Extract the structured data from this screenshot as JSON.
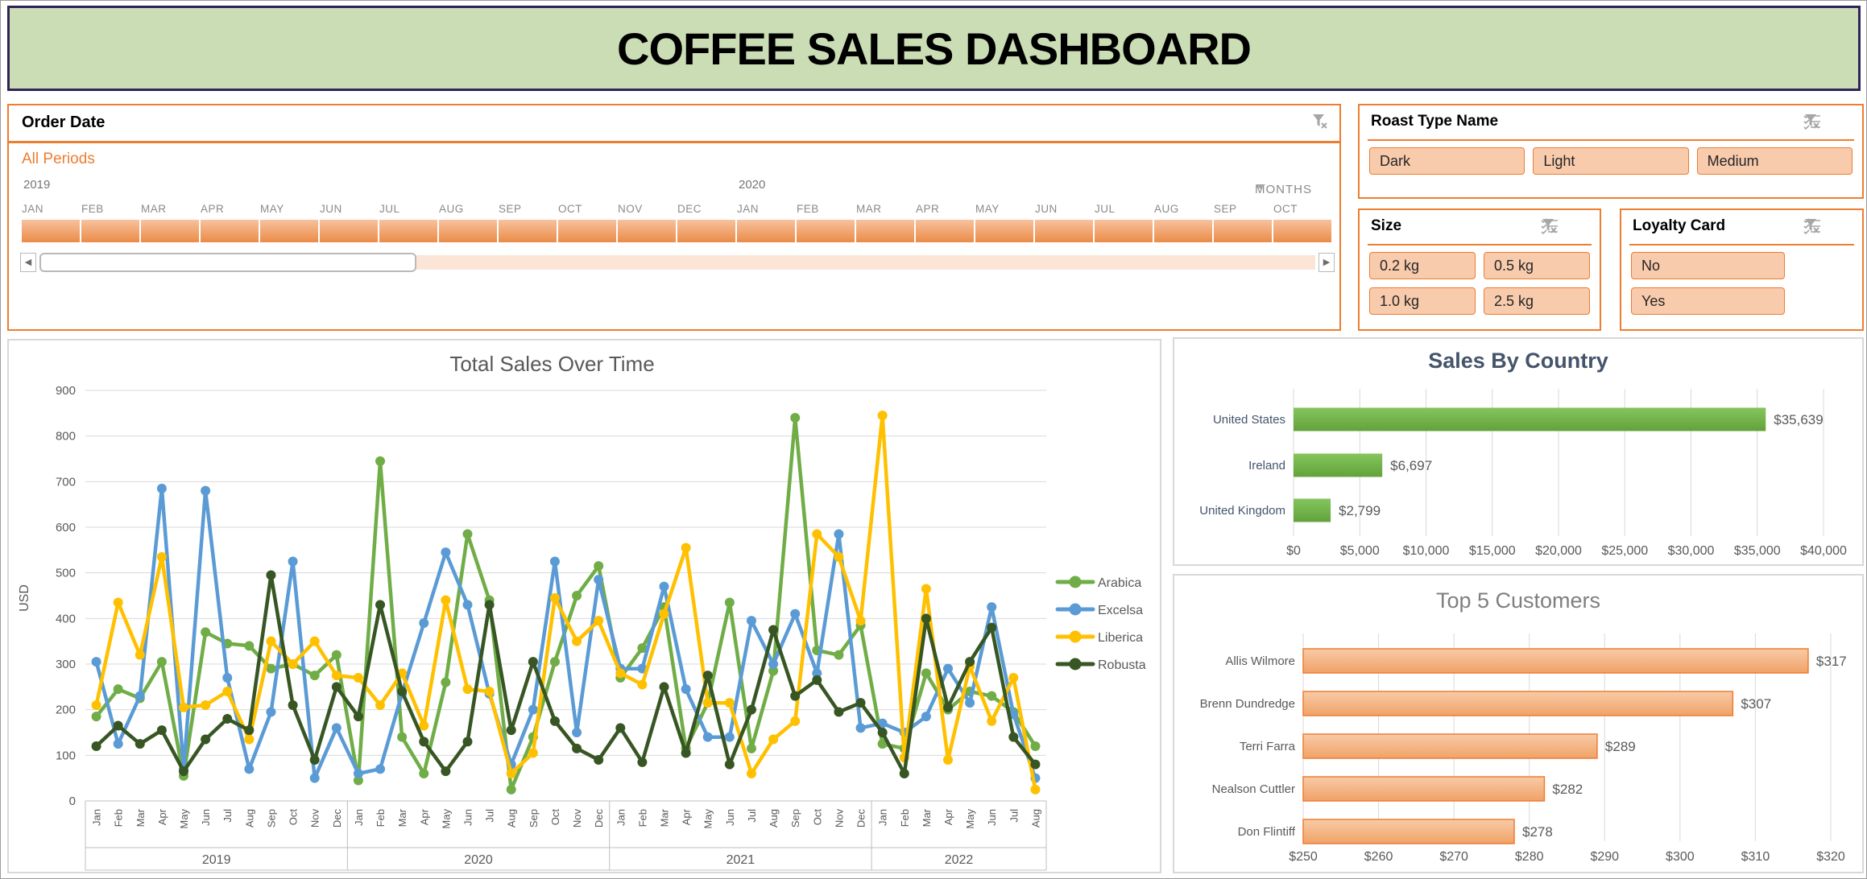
{
  "banner": {
    "title": "COFFEE SALES DASHBOARD"
  },
  "colors": {
    "accent_orange": "#ED7D31",
    "slicer_button_fill": "#F8CBAD",
    "banner_green": "#cbddb5",
    "banner_border": "#2f2457",
    "grid_gray": "#D9D9D9",
    "axis_text_gray": "#595959",
    "country_title_blue": "#44546A",
    "customer_title_gray": "#7f7f7f"
  },
  "timeline": {
    "title": "Order Date",
    "selection_label": "All Periods",
    "level_label": "MONTHS",
    "years": [
      {
        "label": "2019",
        "months": [
          "JAN",
          "FEB",
          "MAR",
          "APR",
          "MAY",
          "JUN",
          "JUL",
          "AUG",
          "SEP",
          "OCT",
          "NOV",
          "DEC"
        ]
      },
      {
        "label": "2020",
        "months": [
          "JAN",
          "FEB",
          "MAR",
          "APR",
          "MAY",
          "JUN",
          "JUL",
          "AUG",
          "SEP",
          "OCT"
        ]
      }
    ]
  },
  "slicers": [
    {
      "title": "Roast Type Name",
      "items": [
        "Dark",
        "Light",
        "Medium"
      ],
      "columns": 3
    },
    {
      "title": "Size",
      "items": [
        "0.2 kg",
        "0.5 kg",
        "1.0 kg",
        "2.5 kg"
      ],
      "columns": 2
    },
    {
      "title": "Loyalty Card",
      "items": [
        "No",
        "Yes"
      ],
      "columns": 1
    }
  ],
  "chart_data": [
    {
      "id": "total_sales",
      "type": "line",
      "title": "Total Sales Over Time",
      "xlabel": "",
      "ylabel": "USD",
      "ylim": [
        0,
        900
      ],
      "ytick": 100,
      "grid": true,
      "legend_position": "right",
      "month_names": [
        "Jan",
        "Feb",
        "Mar",
        "Apr",
        "May",
        "Jun",
        "Jul",
        "Aug",
        "Sep",
        "Oct",
        "Nov",
        "Dec"
      ],
      "year_groups": [
        {
          "label": "2019",
          "count": 12
        },
        {
          "label": "2020",
          "count": 12
        },
        {
          "label": "2021",
          "count": 12
        },
        {
          "label": "2022",
          "count": 8
        }
      ],
      "series": [
        {
          "name": "Arabica",
          "color": "#70AD47",
          "values": [
            185,
            245,
            225,
            305,
            55,
            370,
            345,
            340,
            290,
            300,
            275,
            320,
            45,
            745,
            140,
            60,
            260,
            585,
            440,
            25,
            140,
            305,
            450,
            515,
            270,
            335,
            425,
            115,
            215,
            435,
            115,
            285,
            840,
            330,
            320,
            385,
            125,
            115,
            280,
            200,
            240,
            230,
            195,
            120
          ]
        },
        {
          "name": "Excelsa",
          "color": "#5B9BD5",
          "values": [
            305,
            125,
            230,
            685,
            70,
            680,
            270,
            70,
            195,
            525,
            50,
            160,
            60,
            70,
            235,
            390,
            545,
            430,
            235,
            80,
            200,
            525,
            150,
            485,
            290,
            290,
            470,
            245,
            140,
            140,
            395,
            300,
            410,
            280,
            585,
            160,
            170,
            150,
            185,
            290,
            215,
            425,
            190,
            50
          ]
        },
        {
          "name": "Liberica",
          "color": "#FFC000",
          "values": [
            210,
            435,
            320,
            535,
            205,
            210,
            240,
            135,
            350,
            300,
            350,
            275,
            270,
            210,
            280,
            165,
            440,
            245,
            240,
            60,
            105,
            445,
            350,
            395,
            280,
            255,
            410,
            555,
            215,
            215,
            60,
            135,
            175,
            585,
            535,
            395,
            845,
            95,
            465,
            90,
            295,
            175,
            270,
            25
          ]
        },
        {
          "name": "Robusta",
          "color": "#375623",
          "values": [
            120,
            165,
            125,
            155,
            65,
            135,
            180,
            155,
            495,
            210,
            90,
            250,
            185,
            430,
            240,
            130,
            65,
            130,
            430,
            155,
            305,
            175,
            115,
            90,
            160,
            85,
            250,
            105,
            275,
            80,
            200,
            375,
            230,
            265,
            195,
            215,
            150,
            60,
            400,
            205,
            305,
            380,
            140,
            80
          ]
        }
      ]
    },
    {
      "id": "sales_by_country",
      "type": "bar",
      "title": "Sales By Country",
      "categories": [
        "United States",
        "Ireland",
        "United Kingdom"
      ],
      "values": [
        35639,
        6697,
        2799
      ],
      "value_labels": [
        "$35,639",
        "$6,697",
        "$2,799"
      ],
      "xlim": [
        0,
        40000
      ],
      "xtick": 5000,
      "xtick_labels": [
        "$0",
        "$5,000",
        "$10,000",
        "$15,000",
        "$20,000",
        "$25,000",
        "$30,000",
        "$35,000",
        "$40,000"
      ],
      "bar_color": "#70AD47"
    },
    {
      "id": "top_customers",
      "type": "bar",
      "title": "Top 5 Customers",
      "categories": [
        "Allis Wilmore",
        "Brenn Dundredge",
        "Terri Farra",
        "Nealson Cuttler",
        "Don Flintiff"
      ],
      "values": [
        317,
        307,
        289,
        282,
        278
      ],
      "value_labels": [
        "$317",
        "$307",
        "$289",
        "$282",
        "$278"
      ],
      "xlim": [
        250,
        320
      ],
      "xtick": 10,
      "xtick_labels": [
        "$250",
        "$260",
        "$270",
        "$280",
        "$290",
        "$300",
        "$310",
        "$320"
      ],
      "bar_color": "#F4B183",
      "bar_border": "#ED7D31"
    }
  ]
}
